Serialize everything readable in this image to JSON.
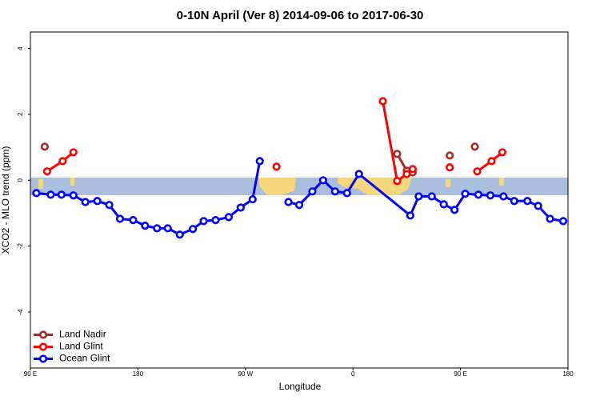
{
  "chart_data": {
    "type": "line",
    "title": "0-10N April (Ver 8)   2014-09-06 to 2017-06-30",
    "x_label": "Longitude",
    "y_label": "XCO2 - MLO trend (ppm)",
    "xlim": [
      90,
      540
    ],
    "xticks": [
      {
        "value": 90,
        "label": "90 E"
      },
      180,
      {
        "value": 270,
        "label": "90 W"
      },
      {
        "value": 360,
        "label": "0"
      },
      {
        "value": 450,
        "label": "90 E"
      },
      {
        "value": 540,
        "label": "180"
      }
    ],
    "ylim": [
      -5.7,
      4.5
    ],
    "yticks": [
      -4,
      -2,
      0,
      2,
      4
    ],
    "legend": "bottom-left",
    "series": [
      {
        "name": "Land Nadir",
        "color": "#a52a2a",
        "x": [
          102,
          null,
          397,
          405,
          410,
          null,
          441,
          null,
          462
        ],
        "values": [
          1.02,
          null,
          0.8,
          0.29,
          0.24,
          null,
          0.75,
          null,
          1.02
        ]
      },
      {
        "name": "Land Glint",
        "color": "#ff0000",
        "x": [
          104,
          117,
          126,
          null,
          296,
          null,
          385,
          397,
          405,
          410,
          null,
          441,
          null,
          464,
          476,
          485
        ],
        "values": [
          0.27,
          0.58,
          0.85,
          null,
          0.41,
          null,
          2.4,
          -0.02,
          0.19,
          0.34,
          null,
          0.39,
          null,
          0.27,
          0.58,
          0.85
        ]
      },
      {
        "name": "Ocean Glint",
        "color": "#0000ff",
        "x": [
          95,
          107,
          116,
          126,
          136,
          146,
          156,
          165,
          176,
          186,
          196,
          205,
          215,
          226,
          235,
          245,
          256,
          266,
          276,
          282,
          null,
          306,
          315,
          326,
          335,
          345,
          355,
          365,
          408,
          415,
          426,
          436,
          445,
          454,
          465,
          475,
          486,
          495,
          506,
          515,
          525,
          536
        ],
        "values": [
          -0.39,
          -0.44,
          -0.44,
          -0.46,
          -0.66,
          -0.63,
          -0.75,
          -1.17,
          -1.21,
          -1.38,
          -1.46,
          -1.46,
          -1.65,
          -1.48,
          -1.24,
          -1.21,
          -1.12,
          -0.83,
          -0.58,
          0.58,
          null,
          -0.66,
          -0.75,
          -0.34,
          0.0,
          -0.34,
          -0.39,
          0.19,
          -1.07,
          -0.49,
          -0.49,
          -0.73,
          -0.9,
          -0.41,
          -0.44,
          -0.46,
          -0.49,
          -0.63,
          -0.63,
          -0.78,
          -1.17,
          -1.24
        ]
      }
    ]
  }
}
